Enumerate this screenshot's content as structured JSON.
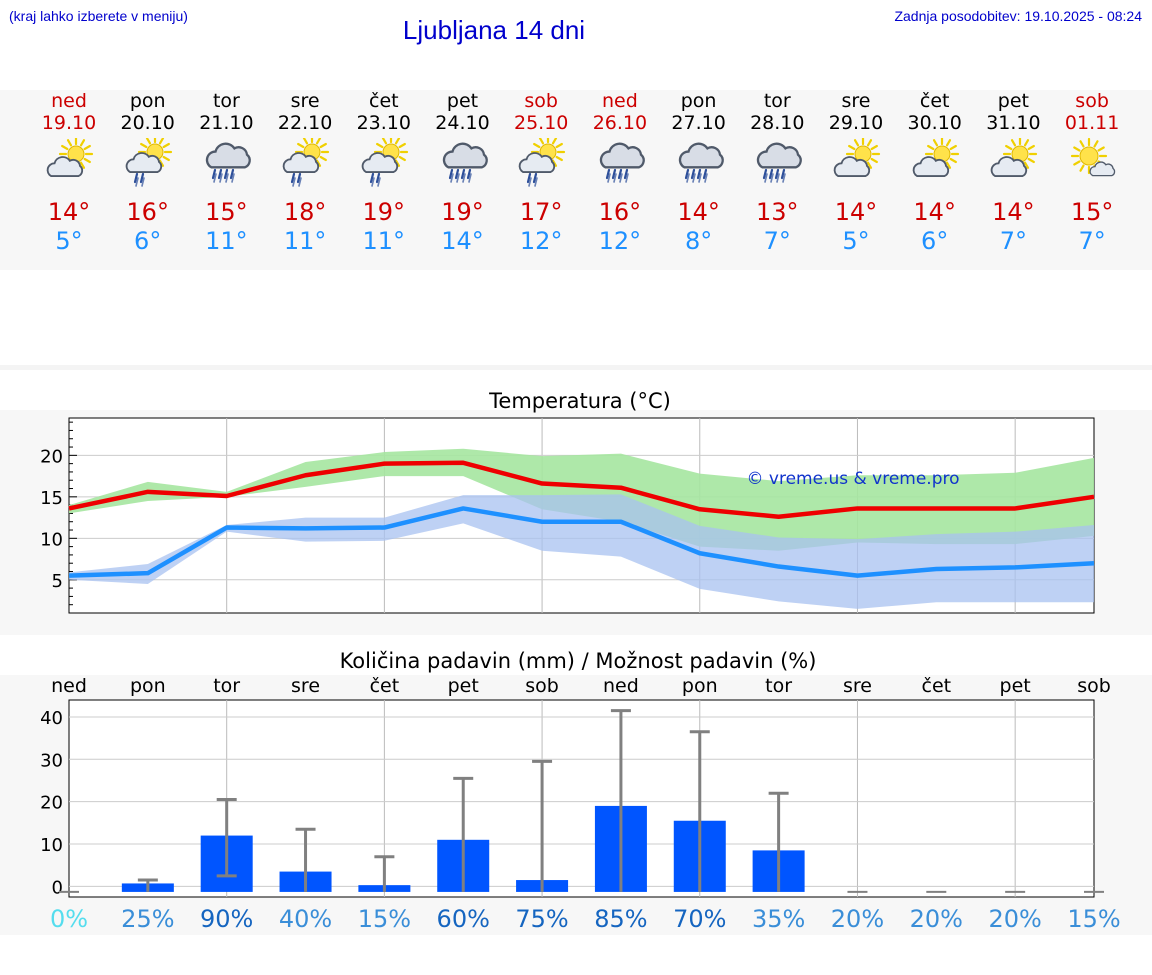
{
  "header": {
    "menu_note": "(kraj lahko izberete v meniju)",
    "title": "Ljubljana 14 dni",
    "update": "Zadnja posodobitev: 19.10.2025 - 08:24"
  },
  "days": [
    {
      "dow": "ned",
      "date": "19.10",
      "hi": "14°",
      "lo": "5°",
      "weekend": true,
      "icon": "partly-cloudy-icon"
    },
    {
      "dow": "pon",
      "date": "20.10",
      "hi": "16°",
      "lo": "6°",
      "weekend": false,
      "icon": "sun-cloud-rain-icon"
    },
    {
      "dow": "tor",
      "date": "21.10",
      "hi": "15°",
      "lo": "11°",
      "weekend": false,
      "icon": "rain-icon"
    },
    {
      "dow": "sre",
      "date": "22.10",
      "hi": "18°",
      "lo": "11°",
      "weekend": false,
      "icon": "sun-cloud-rain-icon"
    },
    {
      "dow": "čet",
      "date": "23.10",
      "hi": "19°",
      "lo": "11°",
      "weekend": false,
      "icon": "sun-cloud-rain-icon"
    },
    {
      "dow": "pet",
      "date": "24.10",
      "hi": "19°",
      "lo": "14°",
      "weekend": false,
      "icon": "rain-icon"
    },
    {
      "dow": "sob",
      "date": "25.10",
      "hi": "17°",
      "lo": "12°",
      "weekend": true,
      "icon": "sun-cloud-rain-icon"
    },
    {
      "dow": "ned",
      "date": "26.10",
      "hi": "16°",
      "lo": "12°",
      "weekend": true,
      "icon": "rain-icon"
    },
    {
      "dow": "pon",
      "date": "27.10",
      "hi": "14°",
      "lo": "8°",
      "weekend": false,
      "icon": "rain-icon"
    },
    {
      "dow": "tor",
      "date": "28.10",
      "hi": "13°",
      "lo": "7°",
      "weekend": false,
      "icon": "rain-icon"
    },
    {
      "dow": "sre",
      "date": "29.10",
      "hi": "14°",
      "lo": "5°",
      "weekend": false,
      "icon": "partly-cloudy-icon"
    },
    {
      "dow": "čet",
      "date": "30.10",
      "hi": "14°",
      "lo": "6°",
      "weekend": false,
      "icon": "partly-cloudy-icon"
    },
    {
      "dow": "pet",
      "date": "31.10",
      "hi": "14°",
      "lo": "7°",
      "weekend": false,
      "icon": "partly-cloudy-icon"
    },
    {
      "dow": "sob",
      "date": "01.11",
      "hi": "15°",
      "lo": "7°",
      "weekend": true,
      "icon": "sun-small-cloud-icon"
    }
  ],
  "colors": {
    "weekend": "#cc0000",
    "weekday": "#000000",
    "hi": "#cc0000",
    "lo": "#1e90ff",
    "max_band": "#a5e6a0",
    "min_band": "#a8c2f0",
    "max_line": "#ee0000",
    "min_line": "#1e90ff",
    "bar": "#0055ff",
    "err": "#808080"
  },
  "chart_data": [
    {
      "type": "line",
      "title": "Temperatura (°C)",
      "watermark": "© vreme.us & vreme.pro",
      "yticks": [
        5,
        10,
        15,
        20
      ],
      "ylim": [
        1,
        24.5
      ],
      "x_days": 14,
      "series": [
        {
          "values": [
            13.6,
            15.6,
            15.1,
            17.6,
            19.0,
            19.1,
            16.6,
            16.1,
            13.5,
            12.6,
            13.6,
            13.6,
            13.6,
            15.0
          ],
          "band_low": [
            13.0,
            14.5,
            15.0,
            16.2,
            17.5,
            17.5,
            13.5,
            12.0,
            9.0,
            8.5,
            9.5,
            9.3,
            9.3,
            10.3
          ],
          "band_high": [
            14.0,
            16.8,
            15.6,
            19.2,
            20.4,
            20.8,
            19.9,
            20.2,
            17.8,
            16.9,
            17.6,
            17.6,
            17.9,
            19.7
          ]
        },
        {
          "values": [
            5.5,
            5.8,
            11.3,
            11.2,
            11.3,
            13.6,
            12.0,
            12.0,
            8.2,
            6.6,
            5.5,
            6.3,
            6.5,
            7.0
          ],
          "band_low": [
            5.0,
            4.5,
            10.8,
            9.6,
            9.7,
            11.8,
            8.5,
            7.8,
            3.9,
            2.4,
            1.5,
            2.3,
            2.3,
            2.3
          ],
          "band_high": [
            5.9,
            6.9,
            11.6,
            12.5,
            12.5,
            15.2,
            15.2,
            15.3,
            11.5,
            10.1,
            9.9,
            10.5,
            10.8,
            11.6
          ]
        }
      ]
    },
    {
      "type": "bar",
      "title": "Količina padavin (mm) / Možnost padavin (%)",
      "categories": [
        "ned",
        "pon",
        "tor",
        "sre",
        "čet",
        "pet",
        "sob",
        "ned",
        "pon",
        "tor",
        "sre",
        "čet",
        "pet",
        "sob"
      ],
      "yticks": [
        0,
        10,
        20,
        30,
        40
      ],
      "ylim": [
        -2.5,
        44
      ],
      "values": [
        0,
        0.7,
        12,
        3.5,
        0.3,
        11,
        1.5,
        19,
        15.5,
        8.5,
        0,
        0,
        0,
        0
      ],
      "err_high": [
        0,
        1.5,
        20.5,
        13.5,
        7.0,
        25.5,
        29.5,
        41.5,
        36.5,
        22.0,
        0,
        0,
        0,
        0
      ],
      "err_low": [
        0,
        0,
        2.5,
        0,
        0,
        0,
        0,
        0,
        0,
        0,
        0,
        0,
        0,
        0
      ],
      "probability": [
        "0%",
        "25%",
        "90%",
        "40%",
        "15%",
        "60%",
        "75%",
        "85%",
        "70%",
        "35%",
        "20%",
        "20%",
        "20%",
        "15%"
      ],
      "prob_colors": [
        "#55ddee",
        "#3a8ed8",
        "#1565c0",
        "#3a8ed8",
        "#3a8ed8",
        "#1565c0",
        "#1565c0",
        "#1565c0",
        "#1565c0",
        "#3a8ed8",
        "#3a8ed8",
        "#3a8ed8",
        "#3a8ed8",
        "#3a8ed8"
      ]
    }
  ]
}
